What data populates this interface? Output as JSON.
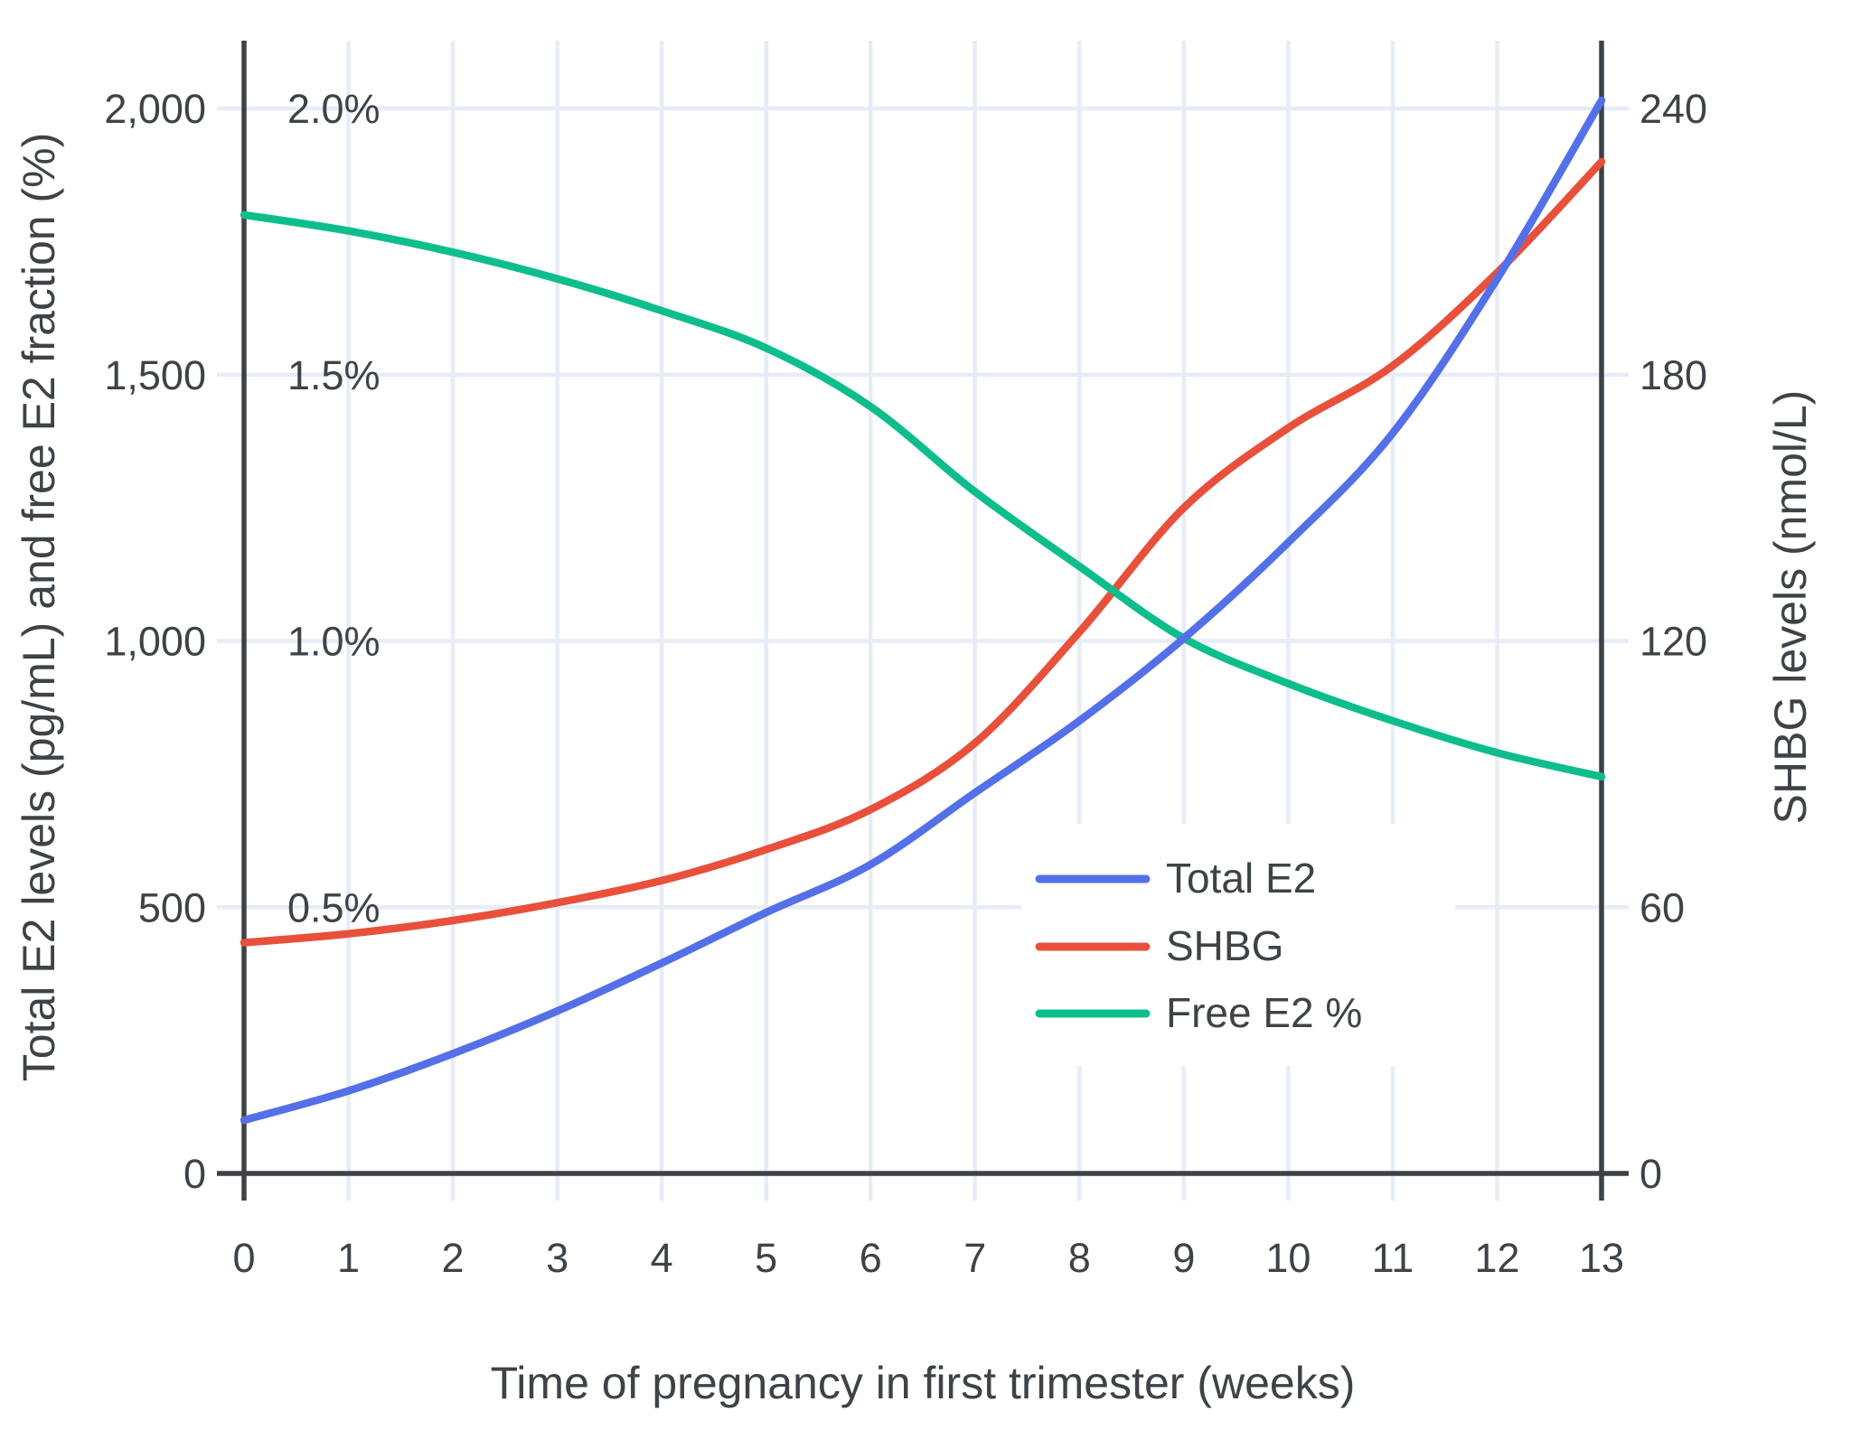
{
  "chart_data": {
    "type": "line",
    "title": "",
    "xlabel": "Time of pregnancy in first trimester (weeks)",
    "ylabel_left": "Total E2 levels (pg/mL) and free E2 fraction (%)",
    "ylabel_right": "SHBG levels (nmol/L)",
    "x": [
      0,
      1,
      2,
      3,
      4,
      5,
      6,
      7,
      8,
      9,
      10,
      11,
      12,
      13
    ],
    "xlim": [
      0,
      13
    ],
    "ylim_left": [
      0,
      2125
    ],
    "ylim_right": [
      0,
      255
    ],
    "grid": true,
    "legend_position": "inside-right",
    "series": [
      {
        "name": "Total E2",
        "axis": "left",
        "unit": "pg/mL",
        "values": [
          100,
          155,
          225,
          305,
          395,
          490,
          580,
          715,
          850,
          1005,
          1185,
          1390,
          1680,
          2015
        ]
      },
      {
        "name": "SHBG",
        "axis": "right",
        "unit": "nmol/L",
        "values": [
          52,
          54,
          57,
          61,
          66,
          73,
          82,
          97,
          122,
          150,
          168,
          182,
          203,
          228
        ]
      },
      {
        "name": "Free E2 %",
        "axis": "left-percent",
        "unit": "%",
        "values": [
          1.8,
          1.77,
          1.73,
          1.68,
          1.62,
          1.55,
          1.44,
          1.28,
          1.14,
          1.005,
          0.92,
          0.85,
          0.79,
          0.745
        ]
      }
    ],
    "x_tick_labels": [
      "0",
      "1",
      "2",
      "3",
      "4",
      "5",
      "6",
      "7",
      "8",
      "9",
      "10",
      "11",
      "12",
      "13"
    ],
    "x_tick_values": [
      0,
      1,
      2,
      3,
      4,
      5,
      6,
      7,
      8,
      9,
      10,
      11,
      12,
      13
    ],
    "y_ticks_left_labels": [
      "0",
      "500",
      "1,000",
      "1,500",
      "2,000"
    ],
    "y_ticks_left_values": [
      0,
      500,
      1000,
      1500,
      2000
    ],
    "y_ticks_percent_labels": [
      "0.5%",
      "1.0%",
      "1.5%",
      "2.0%"
    ],
    "y_ticks_percent_values": [
      0.5,
      1.0,
      1.5,
      2.0
    ],
    "y_ticks_right_labels": [
      "0",
      "60",
      "120",
      "180",
      "240"
    ],
    "y_ticks_right_values": [
      0,
      60,
      120,
      180,
      240
    ],
    "legend_entries": [
      "Total E2",
      "SHBG",
      "Free E2 %"
    ]
  },
  "colors": {
    "total_e2": "#5470e8",
    "shbg": "#e8503c",
    "free_e2": "#0dbe8c",
    "grid": "#e7ecf7",
    "axis": "#3e4146",
    "text": "#3e4347",
    "background": "#ffffff",
    "legend_background": "#ffffff"
  }
}
